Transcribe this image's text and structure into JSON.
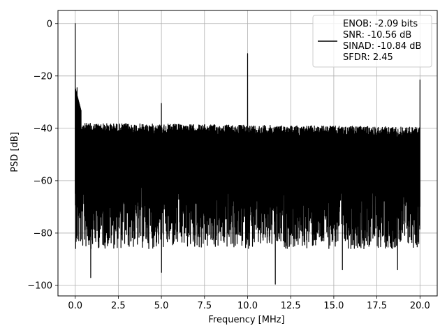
{
  "chart_data": {
    "type": "line",
    "xlabel": "Frequency [MHz]",
    "ylabel": "PSD [dB]",
    "xlim": [
      -1.0,
      21.0
    ],
    "ylim": [
      -104.0,
      5.0
    ],
    "xticks": [
      0.0,
      2.5,
      5.0,
      7.5,
      10.0,
      12.5,
      15.0,
      17.5,
      20.0
    ],
    "xtick_labels": [
      "0.0",
      "2.5",
      "5.0",
      "7.5",
      "10.0",
      "12.5",
      "15.0",
      "17.5",
      "20.0"
    ],
    "yticks": [
      0,
      -20,
      -40,
      -60,
      -80,
      -100
    ],
    "ytick_labels": [
      "0",
      "−20",
      "−40",
      "−60",
      "−80",
      "−100"
    ],
    "grid": true,
    "legend_position": "top-right",
    "series": [
      {
        "color": "#000000",
        "description": "dense noise floor spanning about -35 to -80 dB across 0-20 MHz",
        "noise_band": {
          "x_range": [
            0.0,
            20.0
          ],
          "upper": -36,
          "lower": -80
        },
        "peaks": [
          {
            "x": 0.0,
            "y": 0.0
          },
          {
            "x": 0.1,
            "y": -24.5
          },
          {
            "x": 5.0,
            "y": -30.5
          },
          {
            "x": 10.0,
            "y": -11.5
          },
          {
            "x": 20.0,
            "y": -21.5
          }
        ],
        "dips": [
          {
            "x": 0.9,
            "y": -97
          },
          {
            "x": 5.0,
            "y": -95
          },
          {
            "x": 11.6,
            "y": -99.5
          },
          {
            "x": 15.5,
            "y": -94
          },
          {
            "x": 18.7,
            "y": -94
          }
        ]
      }
    ],
    "legend": {
      "lines": [
        "ENOB: -2.09 bits",
        "SNR: -10.56 dB",
        "SINAD: -10.84 dB",
        "SFDR: 2.45"
      ]
    }
  }
}
